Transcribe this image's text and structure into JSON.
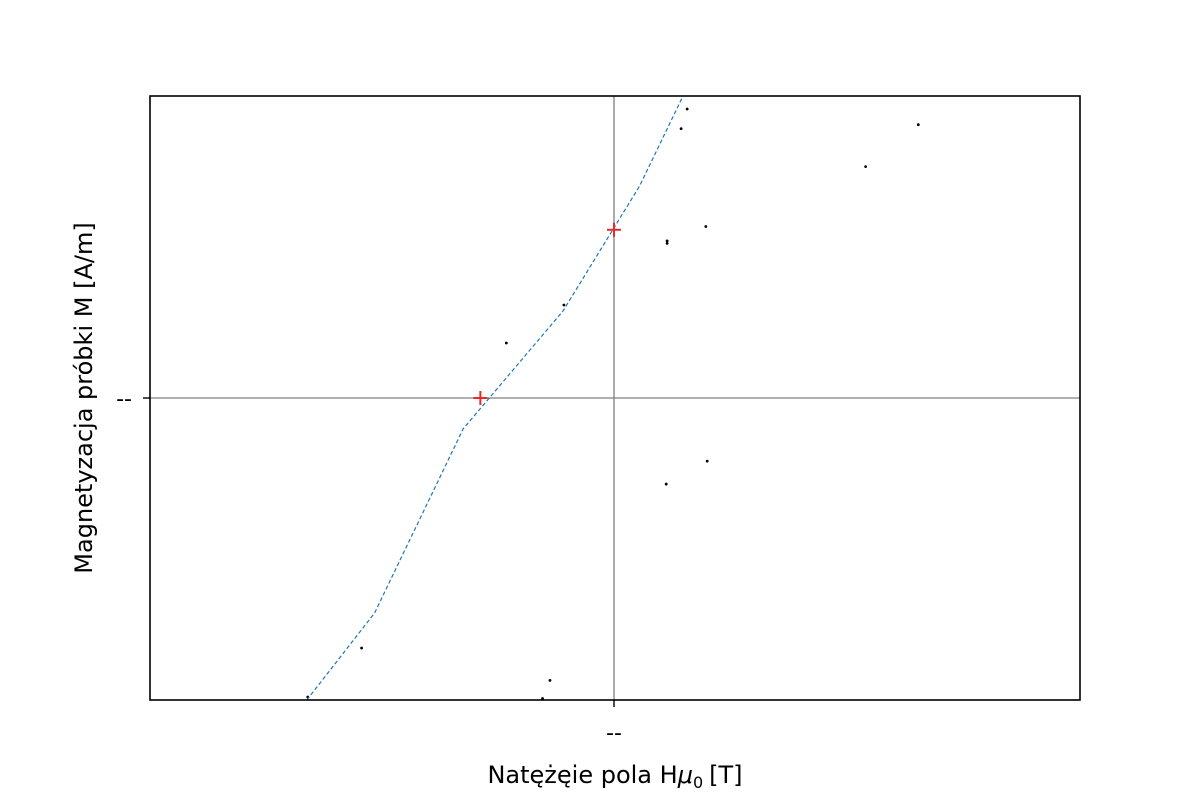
{
  "chart_data": {
    "type": "scatter",
    "title": "",
    "xlabel": "Natężęie pola H",
    "xlabel_symbol": "μ",
    "xlabel_subscript": "0",
    "xlabel_unit": "[T]",
    "ylabel": "Magnetyzacja próbki M [A/m]",
    "xlim": [
      -1.0,
      1.0
    ],
    "ylim": [
      -1.0,
      1.0
    ],
    "x_tick_label": "--",
    "y_tick_label": "--",
    "grid": false,
    "reference_lines": {
      "x": 0,
      "y": 0,
      "color": "#808080"
    },
    "series": [
      {
        "type": "scatter",
        "color": "#000000",
        "points": [
          [
            0.157,
            0.957
          ],
          [
            0.144,
            0.892
          ],
          [
            0.653,
            0.905
          ],
          [
            0.54,
            0.766
          ],
          [
            0.197,
            0.568
          ],
          [
            0.114,
            0.52
          ],
          [
            0.114,
            0.512
          ],
          [
            -0.108,
            0.308
          ],
          [
            -0.232,
            0.182
          ],
          [
            0.2,
            -0.209
          ],
          [
            0.112,
            -0.285
          ],
          [
            -0.544,
            -0.828
          ],
          [
            -0.138,
            -0.935
          ],
          [
            -0.66,
            -0.99
          ],
          [
            -0.154,
            -0.995
          ]
        ]
      },
      {
        "type": "line",
        "style": "dashed",
        "color": "#1f77b4",
        "points": [
          [
            -0.662,
            -1.0
          ],
          [
            -0.516,
            -0.712
          ],
          [
            -0.325,
            -0.102
          ],
          [
            -0.11,
            0.288
          ],
          [
            0.055,
            0.702
          ],
          [
            0.148,
            1.0
          ]
        ]
      },
      {
        "type": "markers",
        "marker": "+",
        "color": "#e8282a",
        "points": [
          [
            0.0,
            0.557
          ],
          [
            -0.288,
            0.0
          ]
        ]
      }
    ]
  }
}
